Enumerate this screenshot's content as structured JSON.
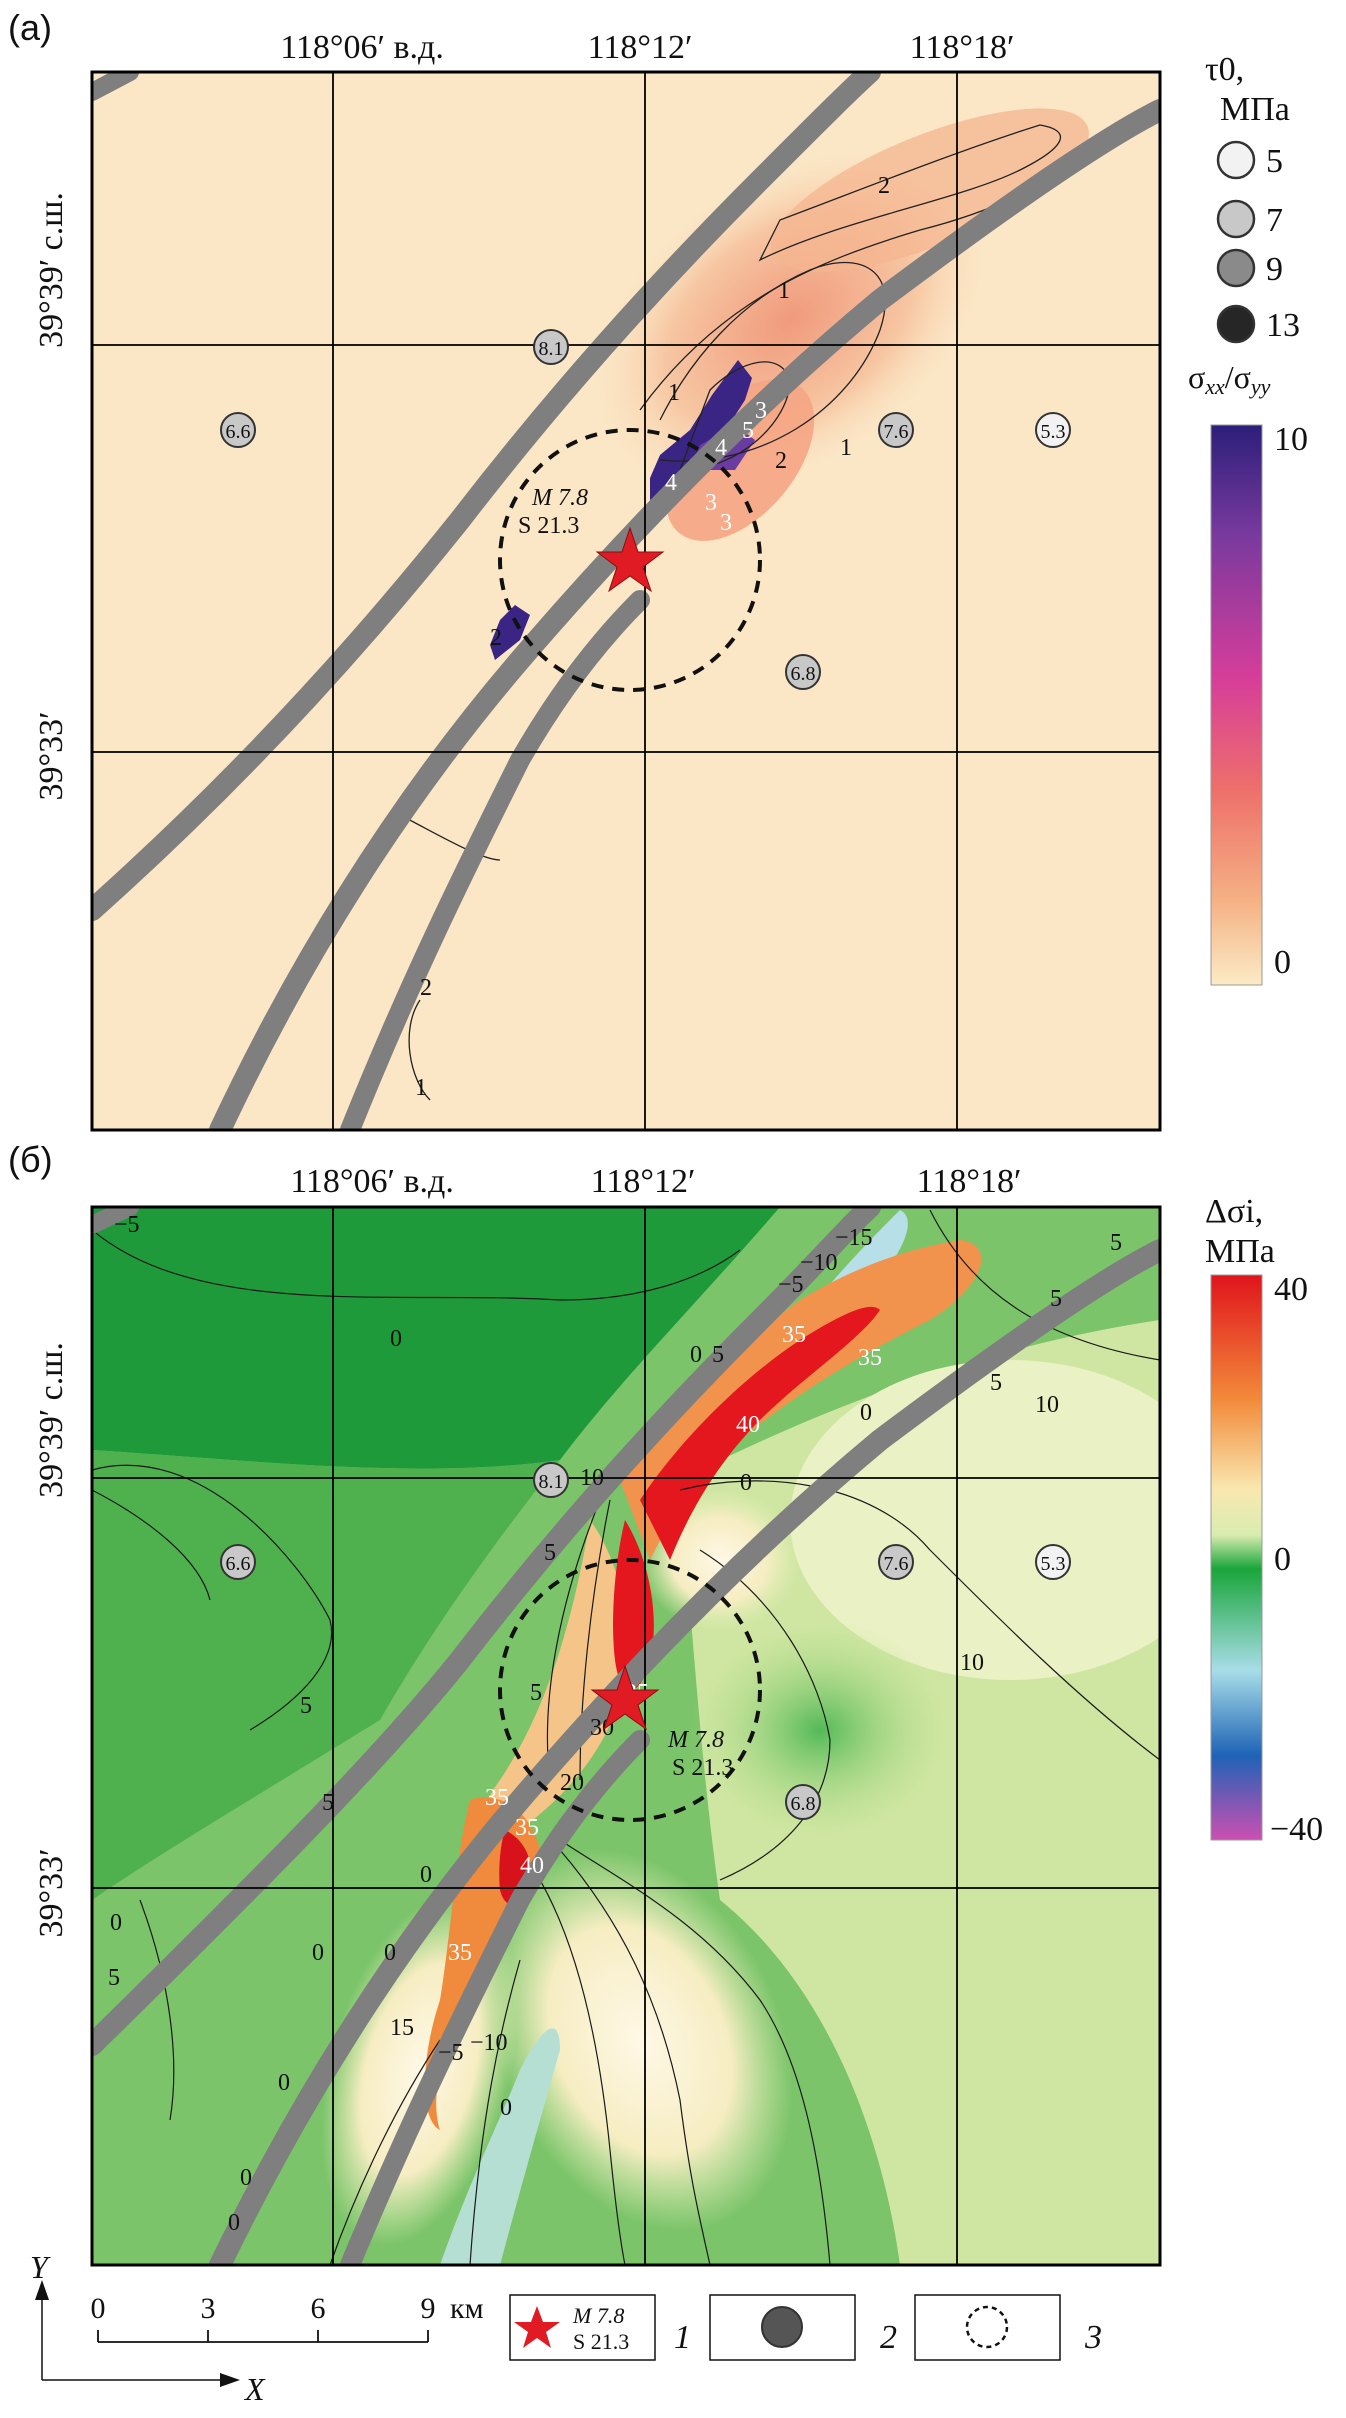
{
  "panel_a": {
    "label": "(а)",
    "lon_ticks": [
      "118°06′ в.д.",
      "118°12′",
      "118°18′"
    ],
    "lat_ticks": [
      "39°39′ с.ш.",
      "39°33′"
    ],
    "legend_tau": {
      "title": "τ0,",
      "unit": "МПа",
      "levels": [
        {
          "value": "5",
          "color": "#f2f2f2"
        },
        {
          "value": "7",
          "color": "#c8c8c8"
        },
        {
          "value": "9",
          "color": "#8a8a8a"
        },
        {
          "value": "13",
          "color": "#262626"
        }
      ]
    },
    "colorbar": {
      "title": "σxx/σyy",
      "max_label": "10",
      "min_label": "0",
      "colors": [
        "#2c1f7a",
        "#7a3a9e",
        "#d63d9a",
        "#ee6f6a",
        "#f5b184",
        "#fbebc6"
      ]
    },
    "station_values": [
      "8.1",
      "6.6",
      "7.6",
      "5.3",
      "6.8"
    ],
    "epicenter_label": [
      "M 7.8",
      "S 21.3"
    ],
    "contour_labels": [
      "2",
      "1",
      "1",
      "1",
      "2",
      "5",
      "3",
      "4",
      "3",
      "4",
      "3",
      "2",
      "2",
      "1"
    ]
  },
  "panel_b": {
    "label": "(б)",
    "lon_ticks": [
      "118°06′ в.д.",
      "118°12′",
      "118°18′"
    ],
    "lat_ticks": [
      "39°39′ с.ш.",
      "39°33′"
    ],
    "colorbar": {
      "title": "Δσi,",
      "unit": "МПа",
      "max_label": "40",
      "mid_label": "0",
      "min_label": "−40",
      "colors": [
        "#e0141c",
        "#f28a3a",
        "#f9e8b0",
        "#d9ecb0",
        "#1aa53a",
        "#a8dde8",
        "#1e63b6",
        "#cc4fb2"
      ]
    },
    "station_values": [
      "8.1",
      "6.6",
      "7.6",
      "5.3",
      "6.8"
    ],
    "epicenter_label": [
      "M 7.8",
      "S 21.3"
    ],
    "contour_labels": [
      "−5",
      "0",
      "0",
      "5",
      "−15",
      "−10",
      "−5",
      "35",
      "35",
      "40",
      "5",
      "5",
      "10",
      "0",
      "0",
      "10",
      "5",
      "5",
      "10",
      "5",
      "25",
      "30",
      "20",
      "35",
      "35",
      "40",
      "5",
      "5",
      "0",
      "0",
      "35",
      "15",
      "−5",
      "−10",
      "0",
      "0",
      "5",
      "0",
      "0",
      "0",
      "0"
    ]
  },
  "scale_bar": {
    "ticks": [
      "0",
      "3",
      "6",
      "9"
    ],
    "unit": "км",
    "axis_x": "X",
    "axis_y": "Y"
  },
  "legend_items": [
    {
      "num": "1",
      "label": [
        "M 7.8",
        "S 21.3"
      ]
    },
    {
      "num": "2"
    },
    {
      "num": "3"
    }
  ]
}
